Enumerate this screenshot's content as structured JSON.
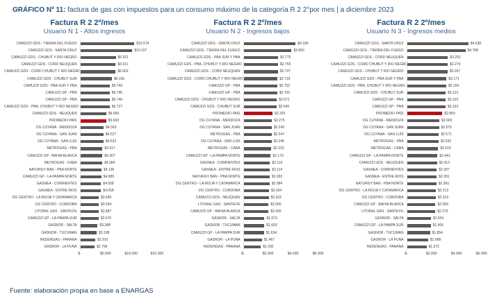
{
  "header": {
    "title_bold": "GRÁFICO Nº 11:",
    "title_rest": " factura de gas con impuestos para un consumo máximo de la categoría R 2 2°por mes | a diciembre 2023"
  },
  "footer": {
    "source": "Fuente: elaboración propia en base a ENARGAS"
  },
  "colors": {
    "bar": "#595959",
    "highlight": "#b41218",
    "title": "#1f4e79",
    "subtitle": "#3d6899"
  },
  "chart_data": [
    {
      "type": "bar",
      "orientation": "horizontal",
      "title": "Factura R 2 2º/mes",
      "subtitle": "Usuario N 1 - Altos ingresos",
      "xlim": [
        0,
        16500
      ],
      "ticks": {
        "labels": [
          "$-",
          "$5.000",
          "$10.000",
          "$15.000"
        ],
        "values": [
          0,
          5000,
          10000,
          15000
        ]
      },
      "highlight_category": "PROMEDIO PAÍS",
      "highlight_index": 11,
      "categories": [
        "CAMUZZI GDS - TIERRA DEL FUEGO",
        "CAMUZZI GDS - SANTA CRUZ",
        "CAMUZZI GDS - CHUBUT Y RIO NEGRO",
        "CAMUZZI GDS - CORD NEUQUEN",
        "CAMUZZI GDS - CORD CHUBUT Y RIO NEGRO",
        "CAMUZZI GDS - CHUBUT SUR",
        "CAMUZZI GDS - PBA SUR Y PBA",
        "CAMUZZI GP - PBA",
        "CAMUZZI GP - PBA",
        "CAMUZZI GDS - PBA, CHUBUT Y RIO NEGRO",
        "CAMUZZI GDS - NEUQUEN",
        "PROMEDIO PAÍS",
        "DG CUYANA - MENDOZA",
        "DG CUYANA - SAN JUAN",
        "DG CUYANA - SAN LUIS",
        "METROGAS - PBA",
        "CAMUZZI GP - BAHIA BLANCA",
        "METROGAS - CABA",
        "NATURGY BAN - PBA NORTE",
        "CAMUZZI GP - LA PAMPA NORTE",
        "GASNEA - CORRIENTES",
        "GASNEA - ENTRE RIOS",
        "DG CENTRO - LA RIOJA Y CATAMARCA",
        "DG CENTRO - CORDOBA",
        "LITORAL GAS - SANTA FE",
        "CAMUZZI GP - LA PAMPA SUR",
        "GASNOR - SALTA",
        "GASNOR - TUCUMAN",
        "REDENGAS - PARANA",
        "GASNOR - LA PUNA"
      ],
      "values": [
        10574,
        10157,
        6921,
        6911,
        6902,
        6156,
        5749,
        5746,
        5746,
        5727,
        5069,
        5043,
        4563,
        4527,
        4523,
        4317,
        4307,
        4284,
        4136,
        4089,
        4058,
        4058,
        3595,
        3594,
        3587,
        3576,
        3388,
        3198,
        2910,
        2799
      ],
      "value_labels": [
        "$10.574",
        "$10.157",
        "$6.921",
        "$6.911",
        "$6.902",
        "$6.156",
        "$5.749",
        "$5.746",
        "$5.746",
        "$5.727",
        "$5.069",
        "$5.043",
        "$4.563",
        "$4.527",
        "$4.523",
        "$4.317",
        "$4.307",
        "$4.284",
        "$4.136",
        "$4.089",
        "$4.058",
        "$4.058",
        "$3.595",
        "$3.594",
        "$3.587",
        "$3.576",
        "$3.388",
        "$3.198",
        "$2.910",
        "$2.799"
      ]
    },
    {
      "type": "bar",
      "orientation": "horizontal",
      "title": "Factura R 2 2º/mes",
      "subtitle": "Usuario N 2 - Ingresos bajos",
      "xlim": [
        0,
        6800
      ],
      "ticks": {
        "labels": [
          "$-",
          "$2.000",
          "$4.000",
          "$6.000"
        ],
        "values": [
          0,
          2000,
          4000,
          6000
        ]
      },
      "highlight_category": "PROMEDIO PAÍS",
      "highlight_index": 10,
      "categories": [
        "CAMUZZI GDS - SANTA CRUZ",
        "CAMUZZI GDS - TIERRA DEL FUEGO",
        "CAMUZZI GDS - PBA SUR Y PBA",
        "CAMUZZI GDS - PBA, CHUBUT Y RIO NEGRO",
        "CAMUZZI GDS - CORD NEUQUEN",
        "CAMUZZI GDS - CORD CHUBUT Y RIO NEGRO",
        "CAMUZZI GP - PBA",
        "CAMUZZI GP - PBA",
        "CAMUZZI GDS - CHUBUT Y RIO NEGRO",
        "CAMUZZI GDS - CHUBUT SUR",
        "PROMEDIO PAÍS",
        "DG CUYANA - MENDOZA",
        "DG CUYANA - SAN JUAN",
        "METROGAS - PBA",
        "DG CUYANA - SAN LUIS",
        "METROGAS - CABA",
        "CAMUZZI GP - LA PAMPA NORTE",
        "GASNEA - CORRIENTES",
        "GASNEA - ENTRE RIOS",
        "NATURGY BAN - PBA NORTE",
        "DG CENTRO - LA RIOJA Y CATAMARCA",
        "DG CENTRO - CORDOBA",
        "CAMUZZI GDS - NEUQUEN",
        "LITORAL GAS - SANTA FE",
        "CAMUZZI GP - BAHIA BLANCA",
        "GASNOR - SALTA",
        "GASNOR - TUCUMAN",
        "CAMUZZI GP - LA PAMPA SUR",
        "GASNOR - LA PUNA",
        "REDENGAS - PARANA"
      ],
      "values": [
        4180,
        3860,
        2775,
        2759,
        2747,
        2719,
        2702,
        2702,
        2671,
        2646,
        2325,
        2275,
        2249,
        2247,
        2245,
        2223,
        2179,
        2119,
        2114,
        2092,
        2084,
        2034,
        2022,
        2000,
        2000,
        1673,
        1663,
        1634,
        1467,
        1392
      ],
      "value_labels": [
        "$4.180",
        "$3.860",
        "$2.775",
        "$2.759",
        "$2.747",
        "$2.719",
        "$2.702",
        "$2.702",
        "$2.671",
        "$2.646",
        "$2.325",
        "$2.275",
        "$2.249",
        "$2.247",
        "$2.245",
        "$2.223",
        "$2.179",
        "$2.119",
        "$2.114",
        "$2.092",
        "$2.084",
        "$2.034",
        "$2.022",
        "$2.000",
        "$2.000",
        "$1.673",
        "$1.663",
        "$1.634",
        "$1.467",
        "$1.392"
      ]
    },
    {
      "type": "bar",
      "orientation": "horizontal",
      "title": "Factura R 2 2º/mes",
      "subtitle": "Usuario N 3 - Ingresos medios",
      "xlim": [
        0,
        6800
      ],
      "ticks": {
        "labels": [
          "$-",
          "$2.000",
          "$4.000",
          "$6.000"
        ],
        "values": [
          0,
          2000,
          4000,
          6000
        ]
      },
      "highlight_category": "PROMEDIO PAÍS",
      "highlight_index": 10,
      "categories": [
        "CAMUZZI GDS - SANTA CRUZ",
        "CAMUZZI GDS - TIERRA DEL FUEGO",
        "CAMUZZI GDS - CORD NEUQUEN",
        "CAMUZZI GDS - CORD CHUBUT Y RIO NEGRO",
        "CAMUZZI GDS - CHUBUT Y RIO NEGRO",
        "CAMUZZI GDS - PBA SUR Y PBA",
        "CAMUZZI GDS - PBA, CHUBUT Y RIO NEGRO",
        "CAMUZZI GDS - CHUBUT SUR",
        "CAMUZZI GP - PBA",
        "CAMUZZI GP - PBA",
        "PROMEDIO PAÍS",
        "DG CUYANA - MENDOZA",
        "DG CUYANA - SAN JUAN",
        "DG CUYANA - SAN LUIS",
        "METROGAS - PBA",
        "METROGAS - CABA",
        "CAMUZZI GP - LA PAMPA NORTE",
        "CAMUZZI GDS - NEUQUEN",
        "GASNEA - CORRIENTES",
        "GASNEA - ENTRE RIOS",
        "NATURGY BAN - PBA NORTE",
        "DG CENTRO - LA RIOJA Y CATAMARCA",
        "DG CENTRO - CORDOBA",
        "CAMUZZI GP - BAHIA BLANCA",
        "LITORAL GAS - SANTA FE",
        "GASNOR - SALTA",
        "CAMUZZI GP - LA PAMPA SUR",
        "GASNOR - TUCUMAN",
        "GASNOR - LA PUNA",
        "REDENGAS - PARANA"
      ],
      "values": [
        4938,
        4708,
        3292,
        3274,
        3267,
        3171,
        3154,
        3113,
        3102,
        3102,
        2850,
        2603,
        2575,
        2571,
        2542,
        2516,
        2443,
        2413,
        2397,
        2391,
        2360,
        2313,
        2313,
        2289,
        2279,
        1924,
        1906,
        1854,
        1698,
        1572
      ],
      "value_labels": [
        "$4.938",
        "$4.708",
        "$3.292",
        "$3.274",
        "$3.267",
        "$3.171",
        "$3.154",
        "$3.113",
        "$3.102",
        "$3.102",
        "$2.850",
        "$2.603",
        "$2.575",
        "$2.571",
        "$2.542",
        "$2.516",
        "$2.443",
        "$2.413",
        "$2.397",
        "$2.391",
        "$2.360",
        "$2.313",
        "$2.313",
        "$2.289",
        "$2.279",
        "$1.924",
        "$1.906",
        "$1.854",
        "$1.698",
        "$1.572"
      ]
    }
  ]
}
